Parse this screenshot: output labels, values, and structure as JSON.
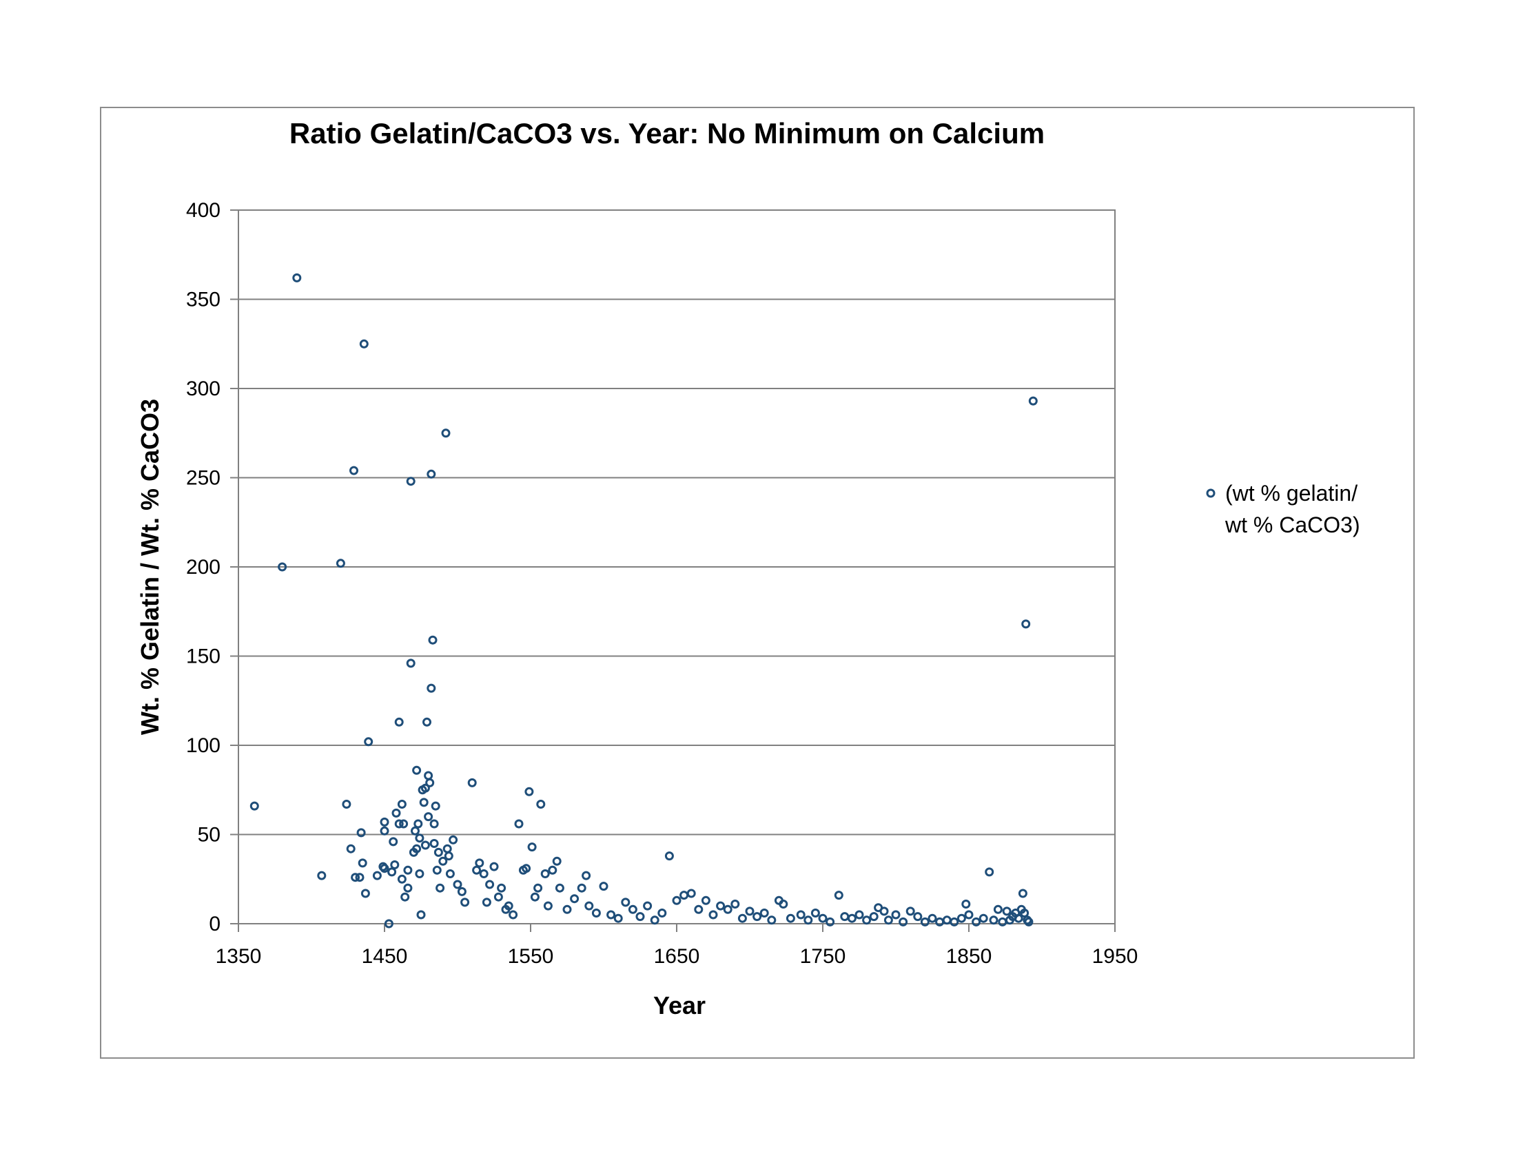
{
  "colors": {
    "marker": "#1f4e79",
    "grid": "#808080",
    "frame": "#8c8c8c"
  },
  "chart_data": {
    "type": "scatter",
    "title": "Ratio Gelatin/CaCO3 vs. Year:  No Minimum on Calcium",
    "xlabel": "Year",
    "ylabel": "Wt. %  Gelatin / Wt. % CaCO3",
    "xlim": [
      1350,
      1950
    ],
    "ylim": [
      0,
      400
    ],
    "xticks": [
      1350,
      1450,
      1550,
      1650,
      1750,
      1850,
      1950
    ],
    "yticks": [
      0,
      50,
      100,
      150,
      200,
      250,
      300,
      350,
      400
    ],
    "grid": "horizontal major gridlines",
    "legend_position": "right",
    "series": [
      {
        "name": "(wt % gelatin/ wt % CaCO3)",
        "legend_lines": [
          "(wt % gelatin/",
          "wt % CaCO3)"
        ],
        "points": [
          [
            1361,
            66
          ],
          [
            1380,
            200
          ],
          [
            1390,
            362
          ],
          [
            1407,
            27
          ],
          [
            1420,
            202
          ],
          [
            1424,
            67
          ],
          [
            1427,
            42
          ],
          [
            1429,
            254
          ],
          [
            1430,
            26
          ],
          [
            1433,
            26
          ],
          [
            1434,
            51
          ],
          [
            1435,
            34
          ],
          [
            1436,
            325
          ],
          [
            1437,
            17
          ],
          [
            1439,
            102
          ],
          [
            1445,
            27
          ],
          [
            1449,
            32
          ],
          [
            1450,
            57
          ],
          [
            1450,
            52
          ],
          [
            1450,
            31
          ],
          [
            1453,
            0
          ],
          [
            1455,
            29
          ],
          [
            1456,
            46
          ],
          [
            1457,
            33
          ],
          [
            1458,
            62
          ],
          [
            1460,
            113
          ],
          [
            1460,
            56
          ],
          [
            1462,
            67
          ],
          [
            1463,
            56
          ],
          [
            1462,
            25
          ],
          [
            1464,
            15
          ],
          [
            1466,
            20
          ],
          [
            1466,
            30
          ],
          [
            1468,
            248
          ],
          [
            1468,
            146
          ],
          [
            1470,
            40
          ],
          [
            1471,
            52
          ],
          [
            1472,
            42
          ],
          [
            1472,
            86
          ],
          [
            1473,
            56
          ],
          [
            1474,
            48
          ],
          [
            1474,
            28
          ],
          [
            1475,
            5
          ],
          [
            1476,
            75
          ],
          [
            1477,
            68
          ],
          [
            1478,
            44
          ],
          [
            1478,
            76
          ],
          [
            1479,
            113
          ],
          [
            1480,
            83
          ],
          [
            1480,
            60
          ],
          [
            1481,
            79
          ],
          [
            1482,
            132
          ],
          [
            1482,
            252
          ],
          [
            1483,
            159
          ],
          [
            1484,
            56
          ],
          [
            1484,
            45
          ],
          [
            1485,
            66
          ],
          [
            1486,
            30
          ],
          [
            1487,
            40
          ],
          [
            1488,
            20
          ],
          [
            1490,
            35
          ],
          [
            1492,
            275
          ],
          [
            1493,
            42
          ],
          [
            1494,
            38
          ],
          [
            1495,
            28
          ],
          [
            1497,
            47
          ],
          [
            1500,
            22
          ],
          [
            1503,
            18
          ],
          [
            1505,
            12
          ],
          [
            1510,
            79
          ],
          [
            1513,
            30
          ],
          [
            1515,
            34
          ],
          [
            1518,
            28
          ],
          [
            1520,
            12
          ],
          [
            1522,
            22
          ],
          [
            1525,
            32
          ],
          [
            1528,
            15
          ],
          [
            1530,
            20
          ],
          [
            1533,
            8
          ],
          [
            1535,
            10
          ],
          [
            1538,
            5
          ],
          [
            1542,
            56
          ],
          [
            1545,
            30
          ],
          [
            1547,
            31
          ],
          [
            1549,
            74
          ],
          [
            1551,
            43
          ],
          [
            1553,
            15
          ],
          [
            1555,
            20
          ],
          [
            1557,
            67
          ],
          [
            1560,
            28
          ],
          [
            1562,
            10
          ],
          [
            1565,
            30
          ],
          [
            1568,
            35
          ],
          [
            1570,
            20
          ],
          [
            1575,
            8
          ],
          [
            1580,
            14
          ],
          [
            1585,
            20
          ],
          [
            1588,
            27
          ],
          [
            1590,
            10
          ],
          [
            1595,
            6
          ],
          [
            1600,
            21
          ],
          [
            1605,
            5
          ],
          [
            1610,
            3
          ],
          [
            1615,
            12
          ],
          [
            1620,
            8
          ],
          [
            1625,
            4
          ],
          [
            1630,
            10
          ],
          [
            1635,
            2
          ],
          [
            1640,
            6
          ],
          [
            1645,
            38
          ],
          [
            1650,
            13
          ],
          [
            1655,
            16
          ],
          [
            1660,
            17
          ],
          [
            1665,
            8
          ],
          [
            1670,
            13
          ],
          [
            1675,
            5
          ],
          [
            1680,
            10
          ],
          [
            1685,
            8
          ],
          [
            1690,
            11
          ],
          [
            1695,
            3
          ],
          [
            1700,
            7
          ],
          [
            1705,
            4
          ],
          [
            1710,
            6
          ],
          [
            1715,
            2
          ],
          [
            1720,
            13
          ],
          [
            1723,
            11
          ],
          [
            1728,
            3
          ],
          [
            1735,
            5
          ],
          [
            1740,
            2
          ],
          [
            1745,
            6
          ],
          [
            1750,
            3
          ],
          [
            1755,
            1
          ],
          [
            1761,
            16
          ],
          [
            1765,
            4
          ],
          [
            1770,
            3
          ],
          [
            1775,
            5
          ],
          [
            1780,
            2
          ],
          [
            1785,
            4
          ],
          [
            1788,
            9
          ],
          [
            1792,
            7
          ],
          [
            1795,
            2
          ],
          [
            1800,
            5
          ],
          [
            1805,
            1
          ],
          [
            1810,
            7
          ],
          [
            1815,
            4
          ],
          [
            1820,
            1
          ],
          [
            1825,
            3
          ],
          [
            1830,
            1
          ],
          [
            1835,
            2
          ],
          [
            1840,
            1
          ],
          [
            1845,
            3
          ],
          [
            1848,
            11
          ],
          [
            1850,
            5
          ],
          [
            1855,
            1
          ],
          [
            1860,
            3
          ],
          [
            1864,
            29
          ],
          [
            1867,
            2
          ],
          [
            1870,
            8
          ],
          [
            1873,
            1
          ],
          [
            1876,
            7
          ],
          [
            1878,
            2
          ],
          [
            1880,
            4
          ],
          [
            1882,
            6
          ],
          [
            1884,
            3
          ],
          [
            1886,
            8
          ],
          [
            1887,
            17
          ],
          [
            1888,
            6
          ],
          [
            1889,
            168
          ],
          [
            1890,
            2
          ],
          [
            1891,
            1
          ],
          [
            1894,
            293
          ]
        ]
      }
    ]
  }
}
